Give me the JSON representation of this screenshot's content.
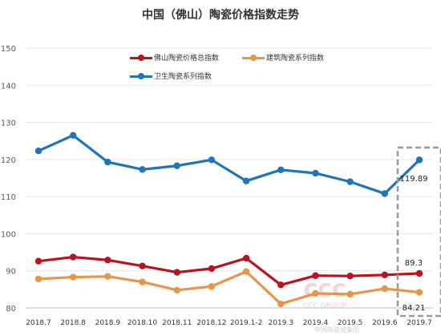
{
  "chart_data": {
    "type": "line",
    "title": "中国（佛山）陶瓷价格指数走势",
    "categories": [
      "2018.7",
      "2018.8",
      "2018.9",
      "2018.10",
      "2018.11",
      "2018.12",
      "2019.1-2",
      "2019.3",
      "2019.4",
      "2019.5",
      "2019.6",
      "2019.7"
    ],
    "ylim": [
      80,
      150
    ],
    "yticks": [
      "80",
      "90",
      "100",
      "110",
      "120",
      "130",
      "140",
      "150"
    ],
    "grid": "horizontal",
    "legend_position": "top",
    "series": [
      {
        "name": "佛山陶瓷价格总指数",
        "color": "#b8141f",
        "values": [
          92.6,
          93.7,
          92.9,
          91.3,
          89.6,
          90.6,
          93.4,
          86.2,
          88.7,
          88.6,
          88.9,
          89.3
        ]
      },
      {
        "name": "建筑陶瓷系列指数",
        "color": "#e8944a",
        "values": [
          87.8,
          88.3,
          88.5,
          87.0,
          84.8,
          85.8,
          89.8,
          81.1,
          83.9,
          83.7,
          85.2,
          84.21
        ]
      },
      {
        "name": "卫生陶瓷系列指数",
        "color": "#1f75b5",
        "values": [
          122.3,
          126.5,
          119.3,
          117.3,
          118.3,
          119.9,
          114.2,
          117.2,
          116.3,
          114.0,
          110.8,
          119.89
        ]
      }
    ],
    "annotations": [
      "119.89",
      "89.3",
      "84.21"
    ]
  },
  "watermark": {
    "text": "中国陶瓷城集团",
    "latin": "CCC GROUP"
  }
}
